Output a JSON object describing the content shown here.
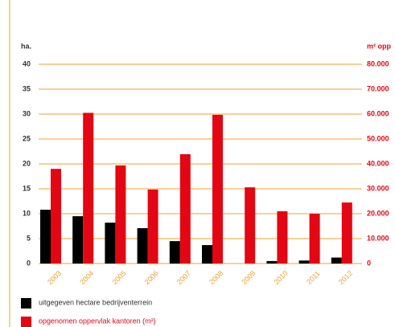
{
  "chart_data": {
    "type": "bar",
    "y_label": "ha.",
    "y2_label": "m² opp",
    "categories": [
      "2003",
      "2004",
      "2005",
      "2006",
      "2007",
      "2008",
      "2009",
      "2010",
      "2011",
      "2012"
    ],
    "series": [
      {
        "name": "uitgegeven hectare bedrijventerrein",
        "color": "#000000",
        "values": [
          10.8,
          9.5,
          8.2,
          7.1,
          4.5,
          3.7,
          0,
          0.5,
          0.6,
          1.2
        ]
      },
      {
        "name": "opgenomen oppervlak kantoren (m²)",
        "color": "#e30613",
        "axis": "y2",
        "values": [
          38000,
          60500,
          39400,
          29700,
          43900,
          59700,
          30600,
          21000,
          20000,
          24500
        ]
      }
    ],
    "ylim": [
      0,
      40
    ],
    "yticks": [
      0,
      5,
      10,
      15,
      20,
      25,
      30,
      35,
      40
    ],
    "y2lim": [
      0,
      80000
    ],
    "y2ticks": [
      0,
      {
        "value": 10000,
        "label": "10.000"
      },
      {
        "value": 20000,
        "label": "20.000"
      },
      {
        "value": 30000,
        "label": "30.000"
      },
      {
        "value": 40000,
        "label": "40.000"
      },
      {
        "value": 50000,
        "label": "50.000"
      },
      {
        "value": 60000,
        "label": "60.000"
      },
      {
        "value": 70000,
        "label": "70.000"
      },
      {
        "value": 80000,
        "label": "80.000"
      }
    ],
    "grid": true,
    "grid_color": "#f0a030",
    "legend": "bottom-left"
  }
}
